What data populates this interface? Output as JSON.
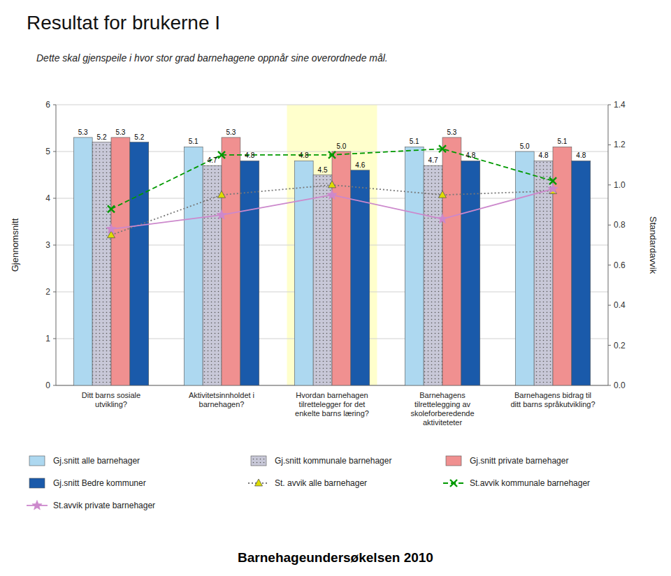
{
  "chart_data": {
    "type": "bar",
    "title": "Resultat for brukerne I",
    "subtitle": "Dette skal gjenspeile i hvor stor grad barnehagene oppnår sine overordnede mål.",
    "annotations": [
      "Barnehageundersøkelsen 2010"
    ],
    "categories": [
      "Ditt barns sosiale\nutvikling?",
      "Aktivitetsinnholdet i\nbarnehagen?",
      "Hvordan barnehagen\ntilrettelegger for det\nenkelte barns læring?",
      "Barnehagens\ntilrettelegging av\nskoleforberedende\naktiviteteter",
      "Barnehagens bidrag til\nditt barns språkutvikling?"
    ],
    "series": [
      {
        "name": "Gj.snitt alle barnehager",
        "type": "bar",
        "color": "#add8f0",
        "values": [
          5.3,
          5.1,
          4.8,
          5.1,
          5.0
        ],
        "value_labels": [
          "5.3",
          "5.1",
          "4.8",
          "5.1",
          "5.0"
        ]
      },
      {
        "name": "Gj.snitt kommunale barnehager",
        "type": "bar",
        "color": "#c8c8d8",
        "values": [
          5.2,
          4.7,
          4.5,
          4.7,
          4.8
        ],
        "value_labels": [
          "5.2",
          "4.7",
          "4.5",
          "4.7",
          "4.8"
        ]
      },
      {
        "name": "Gj.snitt private barnehager",
        "type": "bar",
        "color": "#f09090",
        "values": [
          5.3,
          5.3,
          5.0,
          5.3,
          5.1
        ],
        "value_labels": [
          "5.3",
          "5.3",
          "5.0",
          "5.3",
          "5.1"
        ]
      },
      {
        "name": "Gj.snitt Bedre kommuner",
        "type": "bar",
        "color": "#1a5aaa",
        "values": [
          5.2,
          4.8,
          4.6,
          4.8,
          4.8
        ],
        "value_labels": [
          "5.2",
          "4.8",
          "4.6",
          "4.8",
          "4.8"
        ]
      },
      {
        "name": "St. avvik alle barnehager",
        "type": "line",
        "axis": "y2",
        "color": "#777777",
        "marker": "triangle",
        "line_style": "dotted",
        "values": [
          0.75,
          0.95,
          1.0,
          0.95,
          0.97
        ]
      },
      {
        "name": "St.avvik kommunale barnehager",
        "type": "line",
        "axis": "y2",
        "color": "#009900",
        "marker": "x",
        "line_style": "dashed",
        "values": [
          0.88,
          1.15,
          1.15,
          1.18,
          1.02
        ]
      },
      {
        "name": "St.avvik private barnehager",
        "type": "line",
        "axis": "y2",
        "color": "#cc88cc",
        "marker": "star",
        "line_style": "solid",
        "values": [
          0.78,
          0.85,
          0.95,
          0.83,
          0.98
        ]
      }
    ],
    "ylabel": "Gjennomsnitt",
    "y2label": "Standardavvik",
    "ylim": [
      0,
      6
    ],
    "yticks": [
      0,
      1,
      2,
      3,
      4,
      5,
      6
    ],
    "y2lim": [
      0,
      1.4
    ],
    "y2ticks": [
      {
        "value": 0,
        "label": "0.0"
      },
      0.2,
      0.4,
      0.6,
      0.8,
      {
        "value": 1,
        "label": "1.0"
      },
      1.2,
      1.4
    ],
    "grid": true,
    "legend": "bottom",
    "data_labels": true
  }
}
